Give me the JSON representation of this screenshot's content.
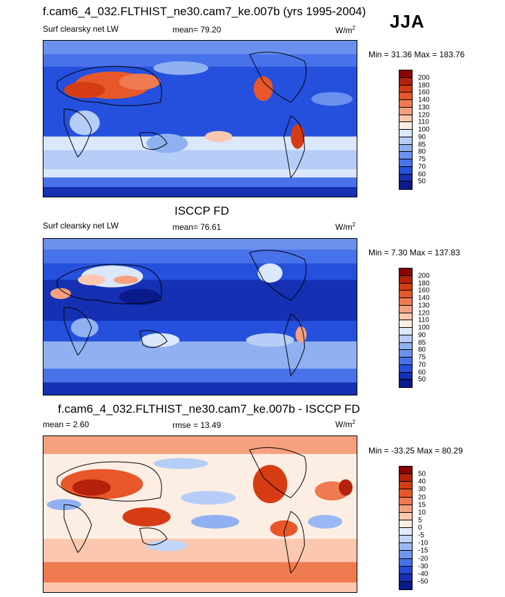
{
  "header": {
    "season": "JJA"
  },
  "panels": [
    {
      "title": "f.cam6_4_032.FLTHIST_ne30.cam7_ke.007b (yrs 1995-2004)",
      "left_label": "Surf clearsky net LW",
      "mean_text": "mean=  79.20",
      "units": "W/m",
      "units_sup": "2",
      "minmax": "Min =  31.36 Max = 183.76",
      "colorbar": {
        "labels": [
          "200",
          "180",
          "160",
          "140",
          "130",
          "120",
          "110",
          "100",
          "90",
          "85",
          "80",
          "75",
          "70",
          "60",
          "50"
        ],
        "colors": [
          "#8b0000",
          "#b5210b",
          "#d63c14",
          "#e8572a",
          "#f07a4f",
          "#f6a07f",
          "#fbc7ae",
          "#fdeee4",
          "#dbe7fb",
          "#b6cdf7",
          "#8fb1f2",
          "#6b91ee",
          "#4872e9",
          "#2450dd",
          "#1530b3",
          "#0a1a8a"
        ]
      }
    },
    {
      "title": "ISCCP FD",
      "left_label": "Surf clearsky net LW",
      "mean_text": "mean=  76.61",
      "units": "W/m",
      "units_sup": "2",
      "minmax": "Min =   7.30 Max = 137.83",
      "colorbar": {
        "labels": [
          "200",
          "180",
          "160",
          "140",
          "130",
          "120",
          "110",
          "100",
          "90",
          "85",
          "80",
          "75",
          "70",
          "60",
          "50"
        ],
        "colors": [
          "#8b0000",
          "#b5210b",
          "#d63c14",
          "#e8572a",
          "#f07a4f",
          "#f6a07f",
          "#fbc7ae",
          "#fdeee4",
          "#dbe7fb",
          "#b6cdf7",
          "#8fb1f2",
          "#6b91ee",
          "#4872e9",
          "#2450dd",
          "#1530b3",
          "#0a1a8a"
        ]
      }
    },
    {
      "title": "f.cam6_4_032.FLTHIST_ne30.cam7_ke.007b - ISCCP FD",
      "left_label": "mean =   2.60",
      "mean_text": "rmse =  13.49",
      "units": "W/m",
      "units_sup": "2",
      "minmax": "Min = -33.25 Max =  80.29",
      "colorbar": {
        "labels": [
          "50",
          "40",
          "30",
          "20",
          "15",
          "10",
          "5",
          "0",
          "-5",
          "-10",
          "-15",
          "-20",
          "-30",
          "-40",
          "-50"
        ],
        "colors": [
          "#8b0000",
          "#b5210b",
          "#d63c14",
          "#e8572a",
          "#f07a4f",
          "#f6a07f",
          "#fbc7ae",
          "#fdeee4",
          "#e2ecfc",
          "#c0d5f8",
          "#99b8f3",
          "#6f95ee",
          "#4670e8",
          "#2349d6",
          "#1530b3",
          "#0a1a8a"
        ]
      }
    }
  ]
}
